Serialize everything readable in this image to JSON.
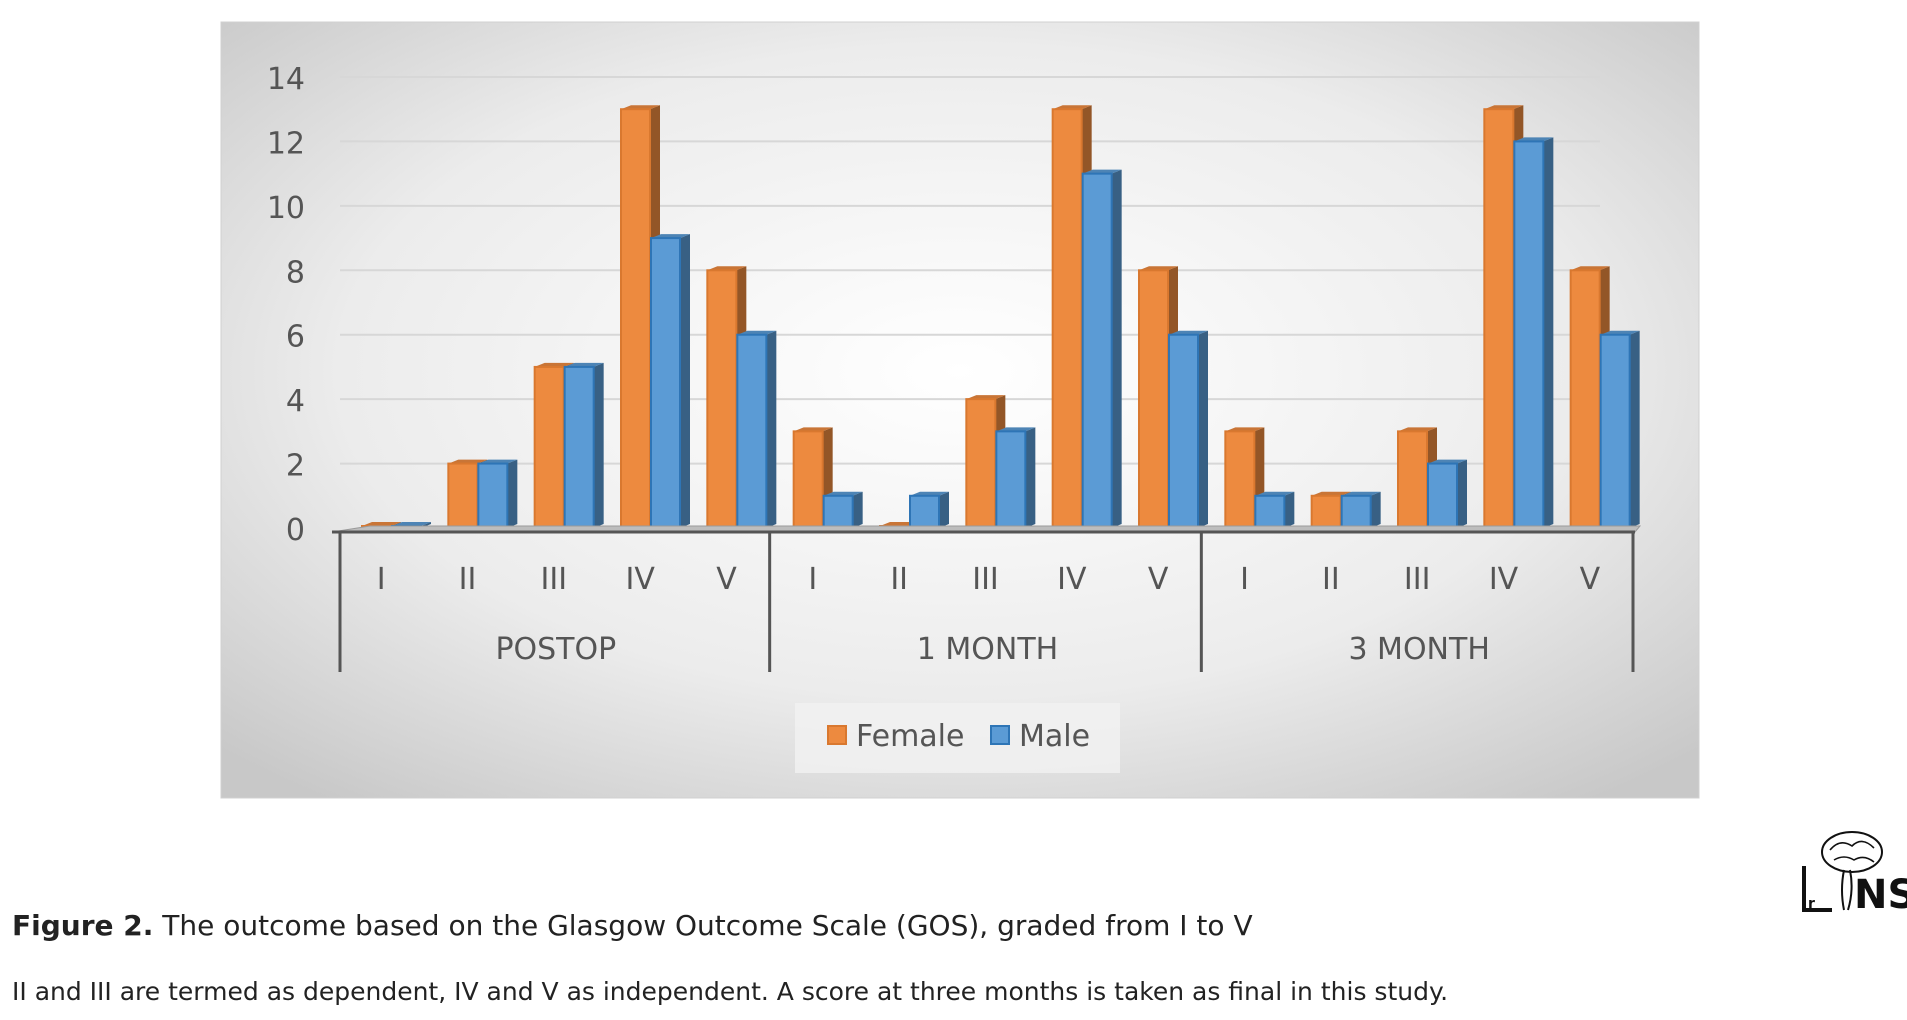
{
  "chart_data": {
    "type": "bar",
    "title": "",
    "xlabel": "",
    "ylabel": "",
    "ylim": [
      0,
      14
    ],
    "yticks": [
      0,
      2,
      4,
      6,
      8,
      10,
      12,
      14
    ],
    "grid": true,
    "legend": "bottom-center",
    "groups": [
      {
        "label": "POSTOP",
        "categories": [
          "I",
          "II",
          "III",
          "IV",
          "V"
        ]
      },
      {
        "label": "1 MONTH",
        "categories": [
          "I",
          "II",
          "III",
          "IV",
          "V"
        ]
      },
      {
        "label": "3 MONTH",
        "categories": [
          "I",
          "II",
          "III",
          "IV",
          "V"
        ]
      }
    ],
    "series": [
      {
        "name": "Female",
        "color": "#ED8A3F",
        "values": [
          0,
          2,
          5,
          13,
          8,
          3,
          0,
          4,
          13,
          8,
          3,
          1,
          3,
          13,
          8
        ]
      },
      {
        "name": "Male",
        "color": "#5B9BD5",
        "values": [
          0,
          2,
          5,
          9,
          6,
          1,
          1,
          3,
          11,
          6,
          1,
          1,
          2,
          12,
          6
        ]
      }
    ]
  },
  "caption": {
    "label": "Figure 2.",
    "text": " The outcome based on the Glasgow Outcome Scale (GOS), graded from I to V"
  },
  "note": "II and III are termed as dependent, IV and V as independent. A score at three months is taken as final in this study.",
  "logo": {
    "text": "IrNS",
    "icon": "brain-spine-logo-icon"
  }
}
